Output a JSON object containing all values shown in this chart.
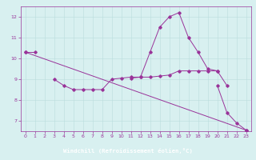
{
  "xlabel": "Windchill (Refroidissement éolien,°C)",
  "x": [
    0,
    1,
    2,
    3,
    4,
    5,
    6,
    7,
    8,
    9,
    10,
    11,
    12,
    13,
    14,
    15,
    16,
    17,
    18,
    19,
    20,
    21,
    22,
    23
  ],
  "line_main": [
    10.3,
    10.3,
    null,
    9.0,
    8.7,
    8.5,
    8.5,
    8.5,
    8.5,
    9.0,
    9.05,
    9.1,
    9.1,
    10.3,
    11.5,
    12.0,
    12.2,
    11.0,
    10.3,
    9.5,
    9.4,
    8.7,
    null,
    null
  ],
  "line_fall": [
    null,
    null,
    null,
    null,
    null,
    null,
    null,
    null,
    null,
    null,
    null,
    null,
    null,
    null,
    null,
    null,
    null,
    null,
    null,
    null,
    8.7,
    7.4,
    6.9,
    6.55
  ],
  "line_diag": [
    10.3,
    null,
    null,
    null,
    null,
    null,
    null,
    null,
    null,
    null,
    null,
    null,
    null,
    null,
    null,
    null,
    null,
    null,
    null,
    null,
    null,
    null,
    null,
    6.55
  ],
  "line_flat": [
    null,
    null,
    null,
    null,
    null,
    null,
    null,
    null,
    null,
    null,
    null,
    9.05,
    9.1,
    9.1,
    9.15,
    9.2,
    9.4,
    9.4,
    9.4,
    9.4,
    9.4,
    null,
    null,
    null
  ],
  "color": "#993399",
  "bg_color": "#d8f0f0",
  "xlabel_bg": "#9933aa",
  "grid_color": "#bbdddd",
  "ylim": [
    6.5,
    12.5
  ],
  "xlim": [
    -0.5,
    23.5
  ],
  "yticks": [
    7,
    8,
    9,
    10,
    11,
    12
  ],
  "xticks": [
    0,
    1,
    2,
    3,
    4,
    5,
    6,
    7,
    8,
    9,
    10,
    11,
    12,
    13,
    14,
    15,
    16,
    17,
    18,
    19,
    20,
    21,
    22,
    23
  ]
}
